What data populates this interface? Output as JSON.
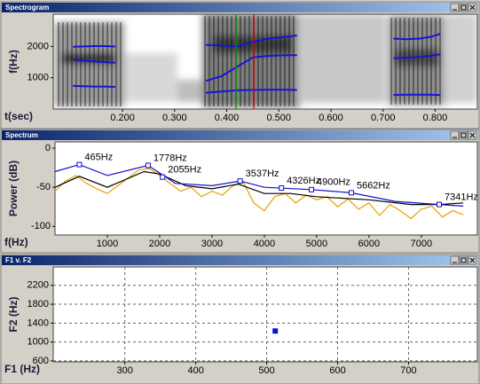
{
  "chart_data": [
    {
      "type": "line",
      "title": "Spectrogram",
      "xlabel": "t(sec)",
      "ylabel": "f(Hz)",
      "xlim": [
        0.067,
        0.881
      ],
      "ylim": [
        0,
        3030
      ],
      "xticks": [
        {
          "value": 0.2,
          "label": "0.200"
        },
        {
          "value": 0.3,
          "label": "0.300"
        },
        {
          "value": 0.4,
          "label": "0.400"
        },
        {
          "value": 0.5,
          "label": "0.500"
        },
        {
          "value": 0.6,
          "label": "0.600"
        },
        {
          "value": 0.7,
          "label": "0.700"
        },
        {
          "value": 0.8,
          "label": "0.800"
        }
      ],
      "yticks": [
        1000,
        2000
      ],
      "series": [
        {
          "color": "#1414dc",
          "x": [
            0.105,
            0.125,
            0.145,
            0.165,
            0.186
          ],
          "values": [
            740,
            730,
            720,
            720,
            710
          ]
        },
        {
          "color": "#1414dc",
          "x": [
            0.105,
            0.125,
            0.145,
            0.165,
            0.186
          ],
          "values": [
            1580,
            1550,
            1520,
            1500,
            1480
          ]
        },
        {
          "color": "#1414dc",
          "x": [
            0.105,
            0.125,
            0.145,
            0.165,
            0.186
          ],
          "values": [
            1990,
            2000,
            2010,
            2010,
            2000
          ]
        },
        {
          "color": "#1414dc",
          "x": [
            0.36,
            0.39,
            0.42,
            0.45,
            0.48,
            0.51,
            0.535
          ],
          "values": [
            520,
            560,
            600,
            610,
            620,
            620,
            610
          ]
        },
        {
          "color": "#1414dc",
          "x": [
            0.36,
            0.39,
            0.42,
            0.45,
            0.48,
            0.51,
            0.535
          ],
          "values": [
            900,
            1050,
            1350,
            1650,
            1700,
            1720,
            1720
          ]
        },
        {
          "color": "#1414dc",
          "x": [
            0.36,
            0.39,
            0.42,
            0.45,
            0.48,
            0.51,
            0.535
          ],
          "values": [
            2050,
            2030,
            2000,
            2150,
            2250,
            2300,
            2350
          ]
        },
        {
          "color": "#1414dc",
          "x": [
            0.72,
            0.745,
            0.77,
            0.79,
            0.81
          ],
          "values": [
            450,
            460,
            460,
            460,
            450
          ]
        },
        {
          "color": "#1414dc",
          "x": [
            0.72,
            0.745,
            0.77,
            0.79,
            0.81
          ],
          "values": [
            1620,
            1640,
            1660,
            1700,
            1750
          ]
        },
        {
          "color": "#1414dc",
          "x": [
            0.72,
            0.745,
            0.77,
            0.79,
            0.81
          ],
          "values": [
            2250,
            2230,
            2250,
            2300,
            2400
          ]
        }
      ],
      "cursors": [
        {
          "color": "#00a000",
          "x": 0.418
        },
        {
          "color": "#e00000",
          "x": 0.452
        }
      ]
    },
    {
      "type": "line",
      "title": "Spectrum",
      "xlabel": "f(Hz)",
      "ylabel": "Power (dB)",
      "xlim": [
        0,
        8070
      ],
      "ylim": [
        -111,
        8
      ],
      "xticks": [
        1000,
        2000,
        3000,
        4000,
        5000,
        6000,
        7000
      ],
      "yticks": [
        0,
        -50,
        -100
      ],
      "series": [
        {
          "color": "#e8a000",
          "x": [
            0,
            200,
            400,
            600,
            800,
            1000,
            1200,
            1400,
            1600,
            1800,
            2000,
            2200,
            2400,
            2600,
            2800,
            3000,
            3200,
            3400,
            3600,
            3800,
            4000,
            4200,
            4400,
            4600,
            4800,
            5000,
            5200,
            5400,
            5600,
            5800,
            6000,
            6200,
            6400,
            6600,
            6800,
            7000,
            7200,
            7400,
            7600,
            7800
          ],
          "values": [
            -55,
            -42,
            -35,
            -45,
            -52,
            -58,
            -48,
            -38,
            -28,
            -26,
            -35,
            -45,
            -55,
            -50,
            -62,
            -55,
            -60,
            -48,
            -44,
            -70,
            -80,
            -62,
            -58,
            -70,
            -60,
            -66,
            -62,
            -75,
            -65,
            -78,
            -70,
            -86,
            -72,
            -80,
            -90,
            -78,
            -74,
            -88,
            -80,
            -85
          ]
        },
        {
          "color": "#000000",
          "x": [
            0,
            465,
            1000,
            1700,
            2000,
            2500,
            3000,
            3500,
            4000,
            4500,
            5000,
            6000,
            6800,
            7341,
            7800
          ],
          "values": [
            -50,
            -36,
            -50,
            -30,
            -33,
            -48,
            -52,
            -46,
            -58,
            -58,
            -62,
            -66,
            -72,
            -72,
            -70
          ]
        },
        {
          "color": "#1010c8",
          "x": [
            0,
            465,
            1000,
            1778,
            2300,
            3000,
            3537,
            4000,
            4900,
            5662,
            6500,
            7341,
            7800
          ],
          "values": [
            -30,
            -21,
            -35,
            -22,
            -45,
            -48,
            -42,
            -50,
            -53,
            -57,
            -68,
            -72,
            -74
          ]
        }
      ],
      "peaks": {
        "color": "#1010c8",
        "x": [
          465,
          1778,
          2055,
          3537,
          4326,
          4900,
          5662,
          7341
        ],
        "values": [
          -21,
          -22,
          -37,
          -42,
          -51,
          -53,
          -57,
          -72
        ],
        "value_labels": [
          "465Hz",
          "1778Hz",
          "2055Hz",
          "3537Hz",
          "4326Hz",
          "4900Hz",
          "5662Hz",
          "7341Hz"
        ]
      }
    },
    {
      "type": "scatter",
      "title": "F1 v. F2",
      "xlabel": "F1 (Hz)",
      "ylabel": "F2 (Hz)",
      "xlim": [
        199,
        797
      ],
      "ylim": [
        580,
        2590
      ],
      "xticks": [
        300,
        400,
        500,
        600,
        700
      ],
      "yticks": [
        600,
        1000,
        1400,
        1800,
        2200
      ],
      "grid": true,
      "color": "#1010d0",
      "x": [
        512
      ],
      "values": [
        1233
      ]
    }
  ]
}
